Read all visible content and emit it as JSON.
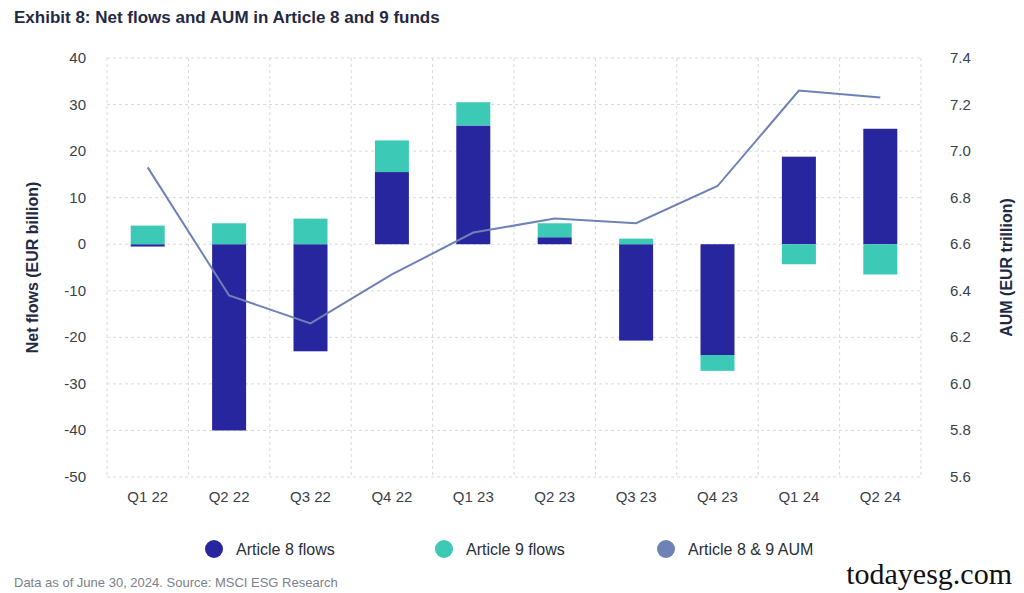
{
  "chart_data": {
    "type": "bar",
    "title": "Exhibit 8: Net flows and AUM in Article 8 and 9 funds",
    "categories": [
      "Q1 22",
      "Q2 22",
      "Q3 22",
      "Q4 22",
      "Q1 23",
      "Q2 23",
      "Q3 23",
      "Q4 23",
      "Q1 24",
      "Q2 24"
    ],
    "y_label": "Net flows (EUR billion)",
    "y2_label": "AUM (EUR trillion)",
    "ylim": [
      -50,
      40
    ],
    "yticks": [
      -50,
      -40,
      -30,
      -20,
      -10,
      0,
      10,
      20,
      30,
      40
    ],
    "y2lim": [
      5.6,
      7.4
    ],
    "y2ticks": [
      5.6,
      5.8,
      {
        "value": 6,
        "label": "6.0"
      },
      6.2,
      6.4,
      6.6,
      6.8,
      {
        "value": 7,
        "label": "7.0"
      },
      7.2,
      7.4
    ],
    "stacked": true,
    "grid": true,
    "legend": "bottom",
    "series": [
      {
        "name": "Article 8 flows",
        "type": "bar",
        "color": "#27269e",
        "values": [
          -0.5,
          -40,
          -23,
          15.5,
          25.5,
          1.5,
          -20.7,
          -23.8,
          18.8,
          24.8
        ]
      },
      {
        "name": "Article 9 flows",
        "type": "bar",
        "color": "#3cc9b5",
        "values": [
          4,
          4.5,
          5.5,
          6.8,
          5,
          3,
          1.2,
          -3.4,
          -4.3,
          -6.5
        ]
      },
      {
        "name": "Article 8 & 9 AUM",
        "type": "line",
        "axis": "y2",
        "color": "#6f82b6",
        "values": [
          6.93,
          6.38,
          6.26,
          6.47,
          6.65,
          6.71,
          6.69,
          6.85,
          7.26,
          7.23
        ]
      }
    ],
    "annotations": [
      "Data as of June 30, 2024. Source: MSCI ESG Research",
      "todayesg.com"
    ]
  }
}
